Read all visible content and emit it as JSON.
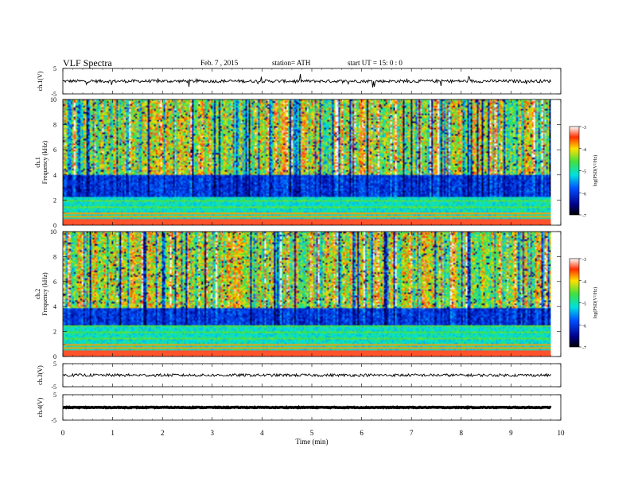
{
  "header": {
    "title": "VLF  Spectra",
    "date": "Feb. 7  , 2015",
    "station": "station= ATH",
    "start_ut": "start  UT  =   15: 0  : 0"
  },
  "chart_data": [
    {
      "type": "line",
      "name": "ch1-waveform",
      "ylabel": "ch.1(V)",
      "yticks": [
        "5",
        "-5"
      ],
      "ylim": [
        -5,
        5
      ],
      "x_range_min": [
        0,
        9.8
      ],
      "mean_level": 0,
      "description": ""
    },
    {
      "type": "heatmap",
      "name": "ch1-spectrogram",
      "ylabel_channel": "ch.1",
      "ylabel": "Frequency  (kHz)",
      "yticks": [
        "0",
        "2",
        "4",
        "6",
        "8",
        "10"
      ],
      "ylim_khz": [
        0,
        10
      ],
      "x_range_min": [
        0,
        9.8
      ],
      "colorbar": {
        "label": "log(PSD(V²/Hz)",
        "ticks": [
          "-3",
          "-4",
          "-5",
          "-6",
          "-7"
        ],
        "range": [
          -7,
          -3
        ]
      }
    },
    {
      "type": "heatmap",
      "name": "ch2-spectrogram",
      "ylabel_channel": "ch.2",
      "ylabel": "Frequency  (kHz)",
      "yticks": [
        "0",
        "2",
        "4",
        "6",
        "8",
        "10"
      ],
      "ylim_khz": [
        0,
        10
      ],
      "x_range_min": [
        0,
        9.8
      ],
      "colorbar": {
        "label": "log(PSD(V²/Hz)",
        "ticks": [
          "-3",
          "-4",
          "-5",
          "-6",
          "-7"
        ],
        "range": [
          -7,
          -3
        ]
      }
    },
    {
      "type": "line",
      "name": "ch3-waveform",
      "ylabel": "ch.3(V)",
      "yticks": [
        "5",
        "-5"
      ],
      "ylim": [
        -5,
        5
      ],
      "x_range_min": [
        0,
        9.8
      ],
      "mean_level": 0
    },
    {
      "type": "line",
      "name": "ch4-waveform",
      "ylabel": "ch.4(V)",
      "yticks": [
        "5",
        "-5"
      ],
      "ylim": [
        -5,
        5
      ],
      "x_range_min": [
        0,
        9.8
      ],
      "mean_level": 0
    }
  ],
  "xaxis": {
    "label": "Time  (min)",
    "ticks": [
      "0",
      "1",
      "2",
      "3",
      "4",
      "5",
      "6",
      "7",
      "8",
      "9",
      "10"
    ],
    "range": [
      0,
      10
    ]
  }
}
